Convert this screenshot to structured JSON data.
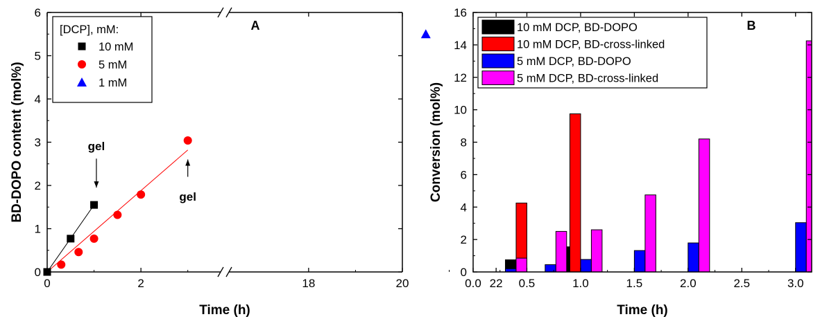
{
  "chart_data": [
    {
      "type": "scatter",
      "panel_label": "A",
      "xlabel": "Time (h)",
      "ylabel": "BD-DOPO content (mol%)",
      "xlim": [
        0,
        22
      ],
      "x_axis_break": [
        3.7,
        16.3
      ],
      "ylim": [
        0,
        6
      ],
      "xticks": [
        0,
        2,
        18,
        20,
        22
      ],
      "xtick_labels": [
        "0",
        "2",
        "18",
        "20",
        "22"
      ],
      "yticks": [
        0,
        1,
        2,
        3,
        4,
        5,
        6
      ],
      "ytick_labels": [
        "0",
        "1",
        "2",
        "3",
        "4",
        "5",
        "6"
      ],
      "legend_title": "[DCP], mM:",
      "legend_position": "top-left",
      "series": [
        {
          "name": "10 mM",
          "marker": "square",
          "color": "#000000",
          "x": [
            0,
            0.5,
            1.0
          ],
          "y": [
            0,
            0.77,
            1.55
          ],
          "fit": [
            [
              0,
              0
            ],
            [
              1.0,
              1.55
            ]
          ]
        },
        {
          "name": "5 mM",
          "marker": "circle",
          "color": "#ff0000",
          "x": [
            0.3,
            0.67,
            1.0,
            1.5,
            2.0,
            3.0
          ],
          "y": [
            0.17,
            0.46,
            0.77,
            1.32,
            1.79,
            3.04
          ],
          "fit": [
            [
              0,
              0
            ],
            [
              3.0,
              2.82
            ]
          ]
        },
        {
          "name": "1 mM",
          "marker": "triangle",
          "color": "#0000ff",
          "x": [
            20.5
          ],
          "y": [
            5.5
          ]
        }
      ],
      "annotations": [
        {
          "text": "gel",
          "x": 1.05,
          "y": 2.82,
          "arrow_from": [
            1.05,
            2.62
          ],
          "arrow_to": [
            1.05,
            1.95
          ]
        },
        {
          "text": "gel",
          "x": 3.0,
          "y": 1.65,
          "arrow_from": [
            3.0,
            2.2
          ],
          "arrow_to": [
            3.0,
            2.6
          ]
        }
      ]
    },
    {
      "type": "bar",
      "panel_label": "B",
      "xlabel": "Time (h)",
      "ylabel": "Conversion (mol%)",
      "xlim": [
        0,
        3.15
      ],
      "ylim": [
        0,
        16
      ],
      "xticks": [
        0,
        0.5,
        1.0,
        1.5,
        2.0,
        2.5,
        3.0
      ],
      "xtick_labels": [
        "0.0",
        "0.5",
        "1.0",
        "1.5",
        "2.0",
        "2.5",
        "3.0"
      ],
      "yticks": [
        0,
        2,
        4,
        6,
        8,
        10,
        12,
        14,
        16
      ],
      "ytick_labels": [
        "0",
        "2",
        "4",
        "6",
        "8",
        "10",
        "12",
        "14",
        "16"
      ],
      "legend_position": "top-left",
      "series": [
        {
          "name": "10 mM DCP,  BD-DOPO",
          "color": "#000000",
          "x": [
            0.35,
            0.85
          ],
          "values": [
            0.75,
            1.55
          ]
        },
        {
          "name": "10 mM DCP, BD-cross-linked",
          "color": "#ff0000",
          "x": [
            0.45,
            0.95
          ],
          "values": [
            4.25,
            9.75
          ]
        },
        {
          "name": "5 mM DCP, BD-DOPO",
          "color": "#0000ff",
          "x": [
            0.35,
            0.72,
            1.05,
            1.55,
            2.05,
            3.05
          ],
          "values": [
            0.2,
            0.45,
            0.77,
            1.32,
            1.79,
            3.04
          ]
        },
        {
          "name": "5 mM DCP, BD-cross-linked",
          "color": "#ff00ff",
          "x": [
            0.45,
            0.82,
            1.15,
            1.65,
            2.15,
            3.15
          ],
          "values": [
            0.85,
            2.5,
            2.6,
            4.75,
            8.2,
            14.25
          ]
        }
      ]
    }
  ]
}
